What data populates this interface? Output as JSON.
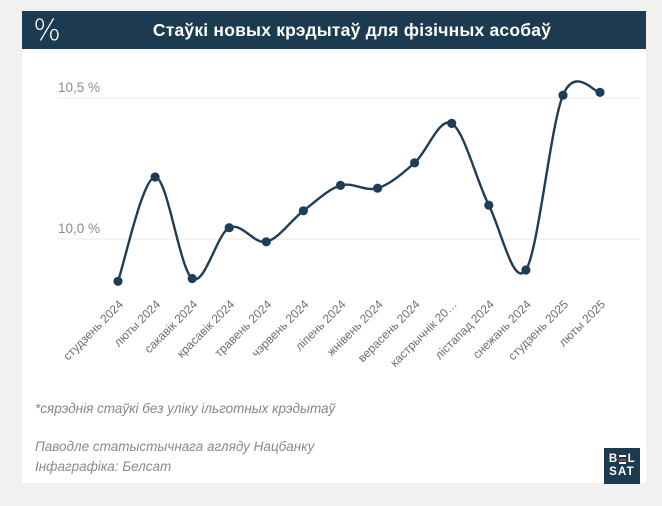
{
  "header": {
    "percent_symbol": "%",
    "title": "Стаўкі новых крэдытаў для фізічных асобаў"
  },
  "chart_data": {
    "type": "line",
    "categories": [
      "студзень 2024",
      "люты 2024",
      "сакавік 2024",
      "красавік 2024",
      "травень 2024",
      "чэрвень 2024",
      "ліпень 2024",
      "жнівень 2024",
      "верасень 2024",
      "кастрычнік 20…",
      "лістапад 2024",
      "снежань 2024",
      "студзень 2025",
      "люты 2025"
    ],
    "values": [
      9.85,
      10.22,
      9.86,
      10.04,
      9.99,
      10.1,
      10.19,
      10.18,
      10.27,
      10.41,
      10.12,
      9.89,
      10.51,
      10.52
    ],
    "yticks": [
      {
        "label": "10,5 %",
        "value": 10.5
      },
      {
        "label": "10,0 %",
        "value": 10.0
      }
    ],
    "ylim": [
      9.78,
      10.62
    ],
    "grid": "horizontal-only",
    "legend": "none",
    "line_color": "#1e3d56",
    "point_color": "#1e3d56",
    "grid_color": "#e8e8e6",
    "ytick_color": "#8b8b8b",
    "xtick_color": "#6e6e6e"
  },
  "footnote": "*сярэднія стаўкі без уліку ільготных крэдытаў",
  "source": {
    "line1": "Паводле статыстычнага агляду Нацбанку",
    "line2": "Інфаграфіка: Белсат"
  },
  "logo": {
    "row1_left": "B",
    "row1_right": "L",
    "row2": "SAT",
    "navy": "#1c3a50",
    "red": "#a94442"
  }
}
